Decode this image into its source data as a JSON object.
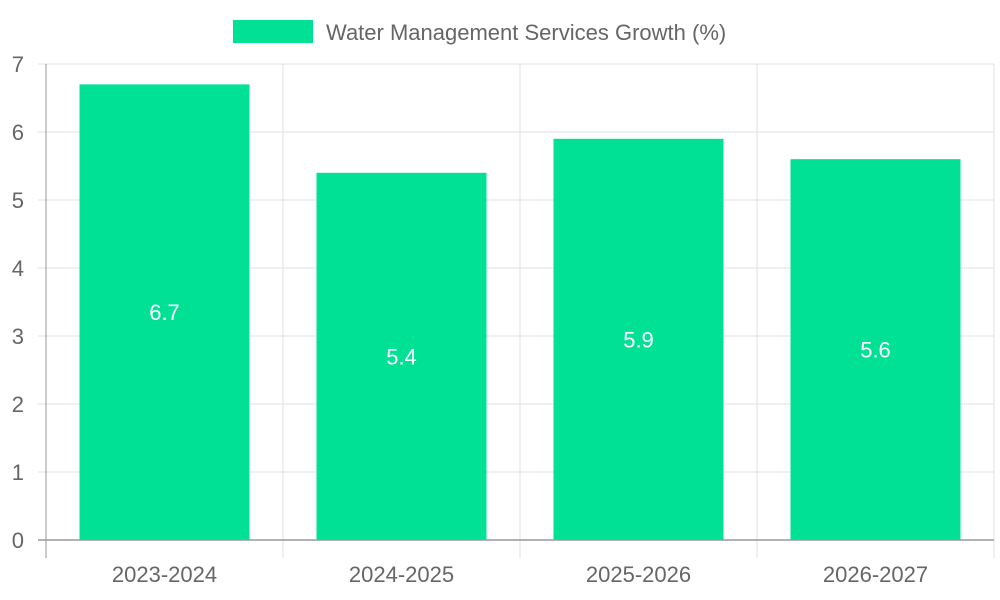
{
  "chart_data": {
    "type": "bar",
    "legend_label": "Water Management Services Growth (%)",
    "legend_position": "top-center",
    "categories": [
      "2023-2024",
      "2024-2025",
      "2025-2026",
      "2026-2027"
    ],
    "series": [
      {
        "name": "Water Management Services Growth (%)",
        "values": [
          6.7,
          5.4,
          5.9,
          5.6
        ],
        "color": "#00e196"
      }
    ],
    "ylim": [
      0,
      7
    ],
    "yticks": [
      "0",
      "1",
      "2",
      "3",
      "4",
      "5",
      "6",
      "7"
    ],
    "data_labels": [
      "6.7",
      "5.4",
      "5.9",
      "5.6"
    ],
    "grid": true,
    "colors": {
      "bar": "#00e196",
      "grid": "#e0e0e0",
      "axis": "#999999",
      "text": "#666666",
      "label": "#ffffff"
    }
  }
}
